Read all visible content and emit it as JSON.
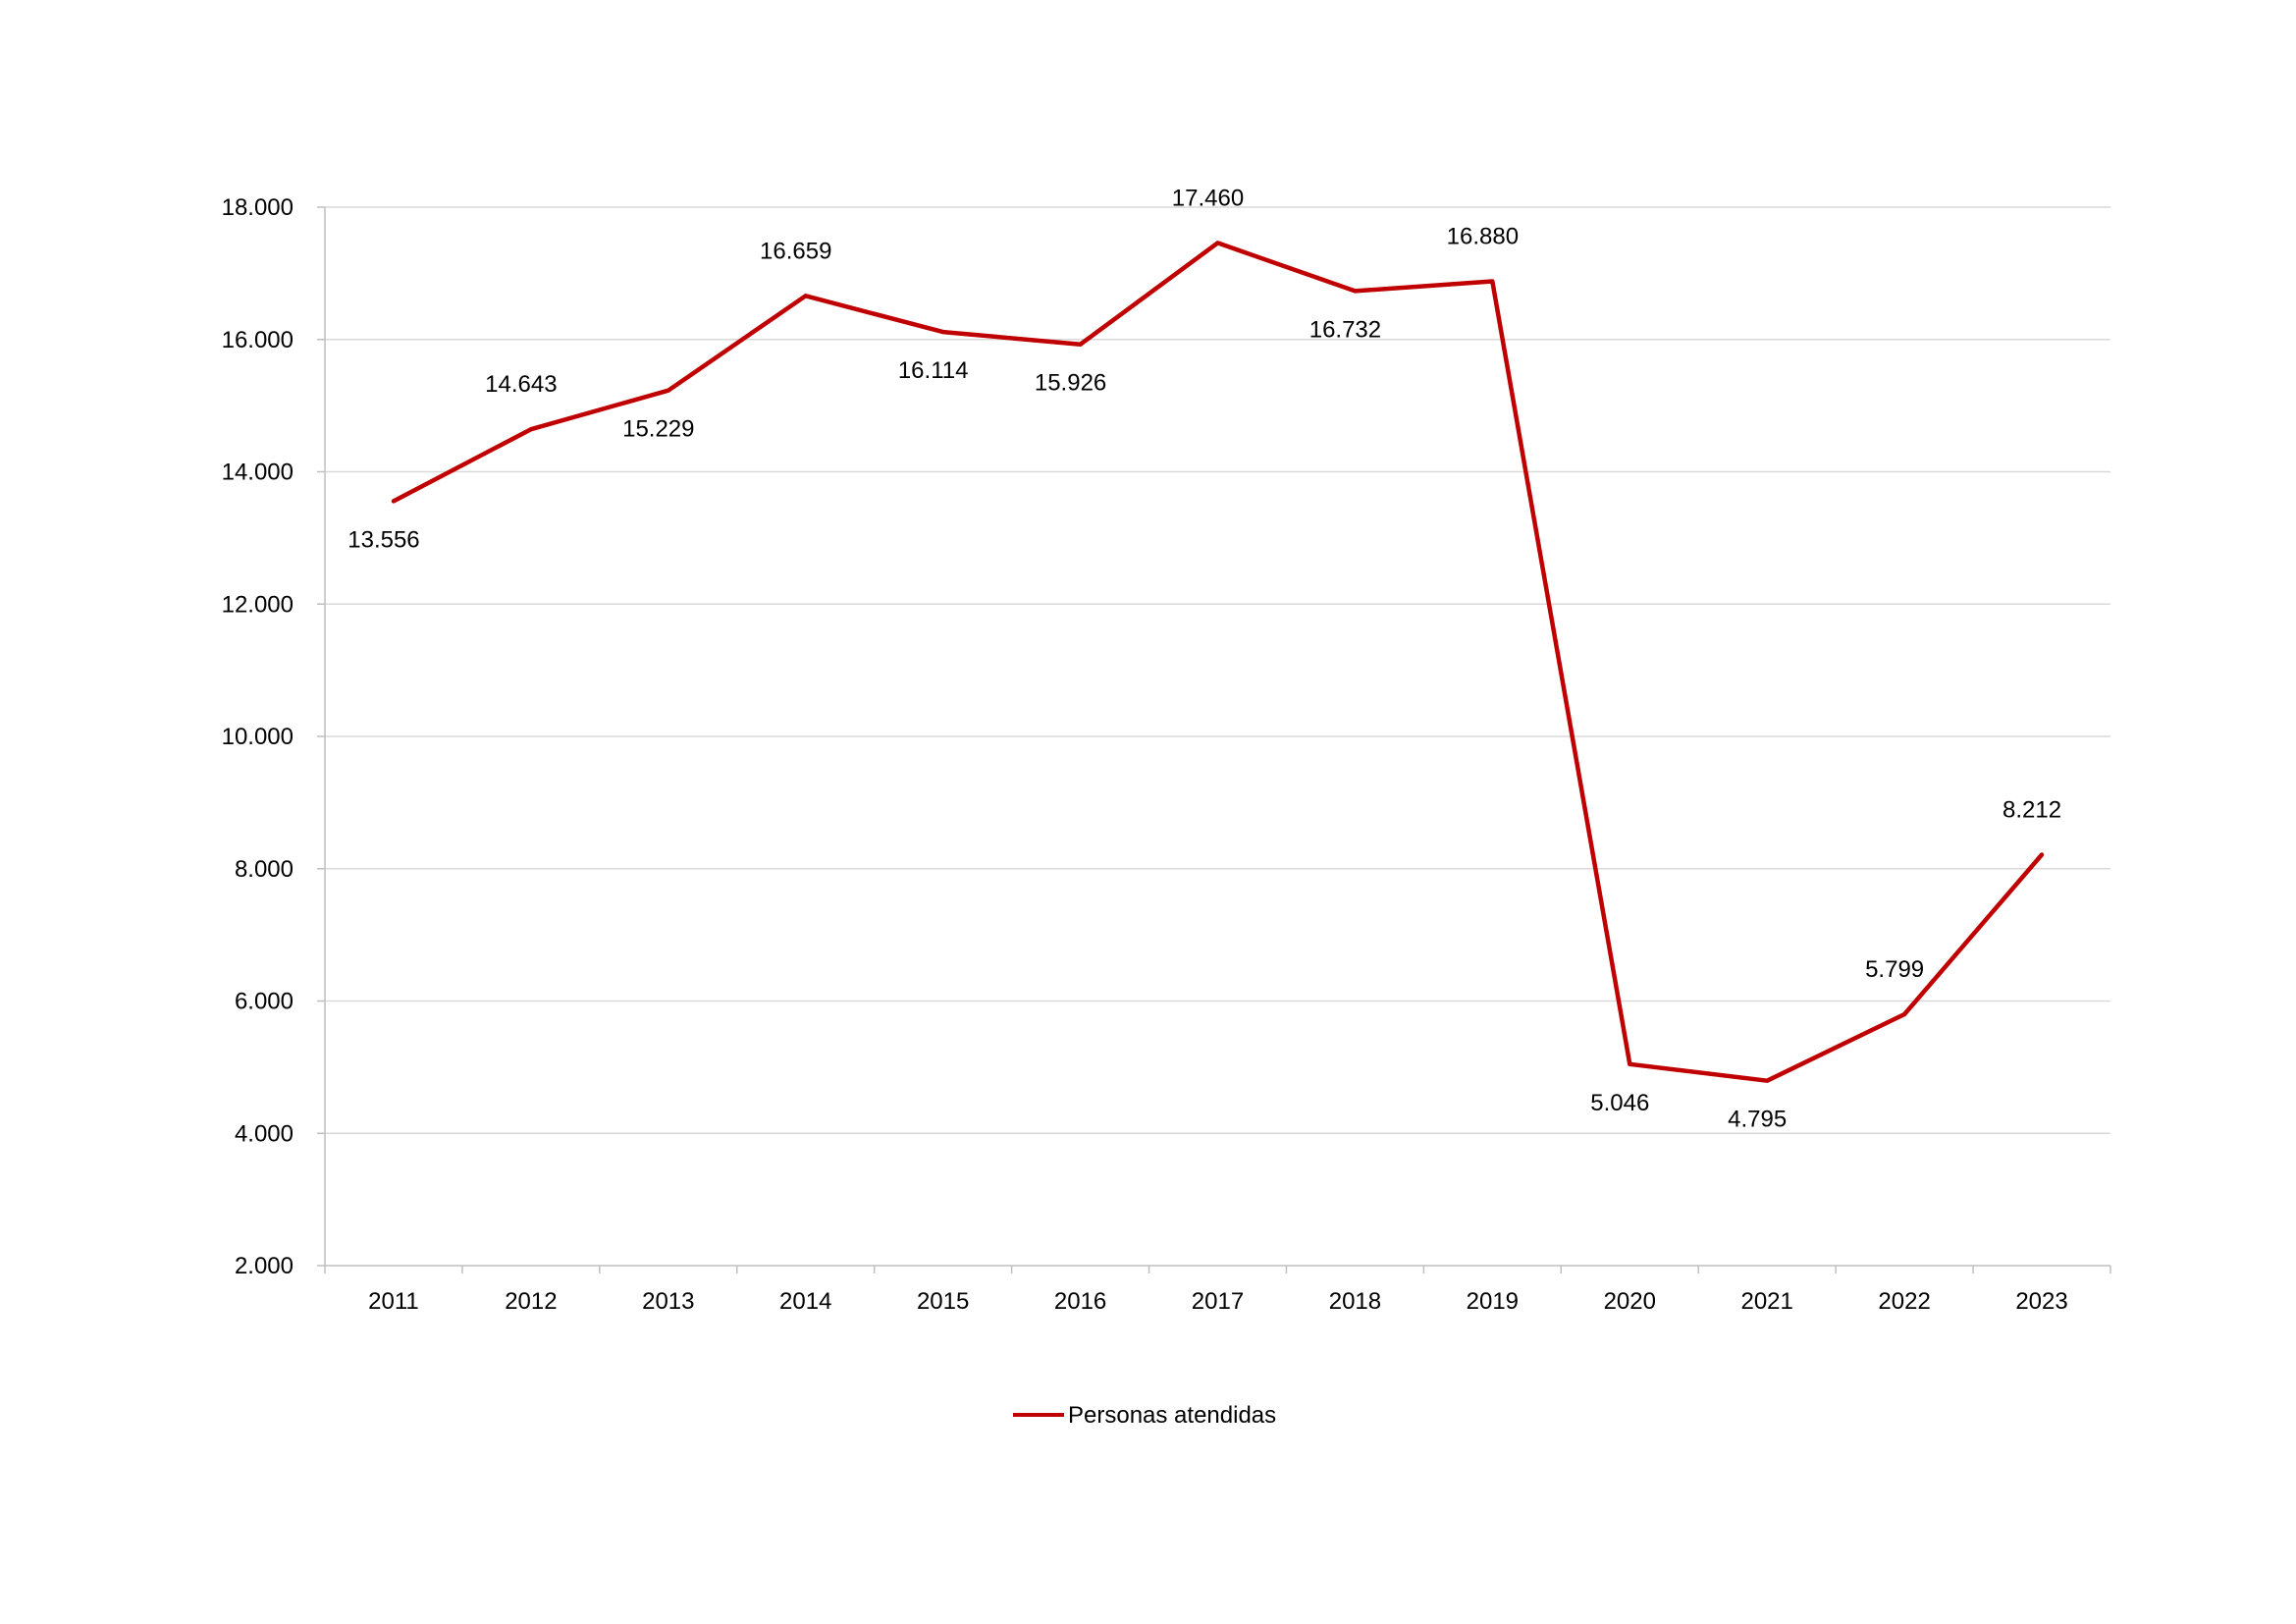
{
  "chart_data": {
    "type": "line",
    "title": "",
    "xlabel": "",
    "ylabel": "",
    "categories": [
      "2011",
      "2012",
      "2013",
      "2014",
      "2015",
      "2016",
      "2017",
      "2018",
      "2019",
      "2020",
      "2021",
      "2022",
      "2023"
    ],
    "series": [
      {
        "name": "Personas atendidas",
        "color": "#c00000",
        "values": [
          13556,
          14643,
          15229,
          16659,
          16114,
          15926,
          17460,
          16732,
          16880,
          5046,
          4795,
          5799,
          8212
        ],
        "labels": [
          "13.556",
          "14.643",
          "15.229",
          "16.659",
          "16.114",
          "15.926",
          "17.460",
          "16.732",
          "16.880",
          "5.046",
          "4.795",
          "5.799",
          "8.212"
        ],
        "label_position": [
          "below",
          "above",
          "below",
          "above",
          "below",
          "below",
          "above",
          "below",
          "above",
          "below",
          "below",
          "above",
          "above"
        ]
      }
    ],
    "ylim": [
      2000,
      18000
    ],
    "yticks": [
      2000,
      4000,
      6000,
      8000,
      10000,
      12000,
      14000,
      16000,
      18000
    ],
    "ytick_labels": [
      "2.000",
      "4.000",
      "6.000",
      "8.000",
      "10.000",
      "12.000",
      "14.000",
      "16.000",
      "18.000"
    ],
    "grid": true,
    "legend": "bottom"
  }
}
